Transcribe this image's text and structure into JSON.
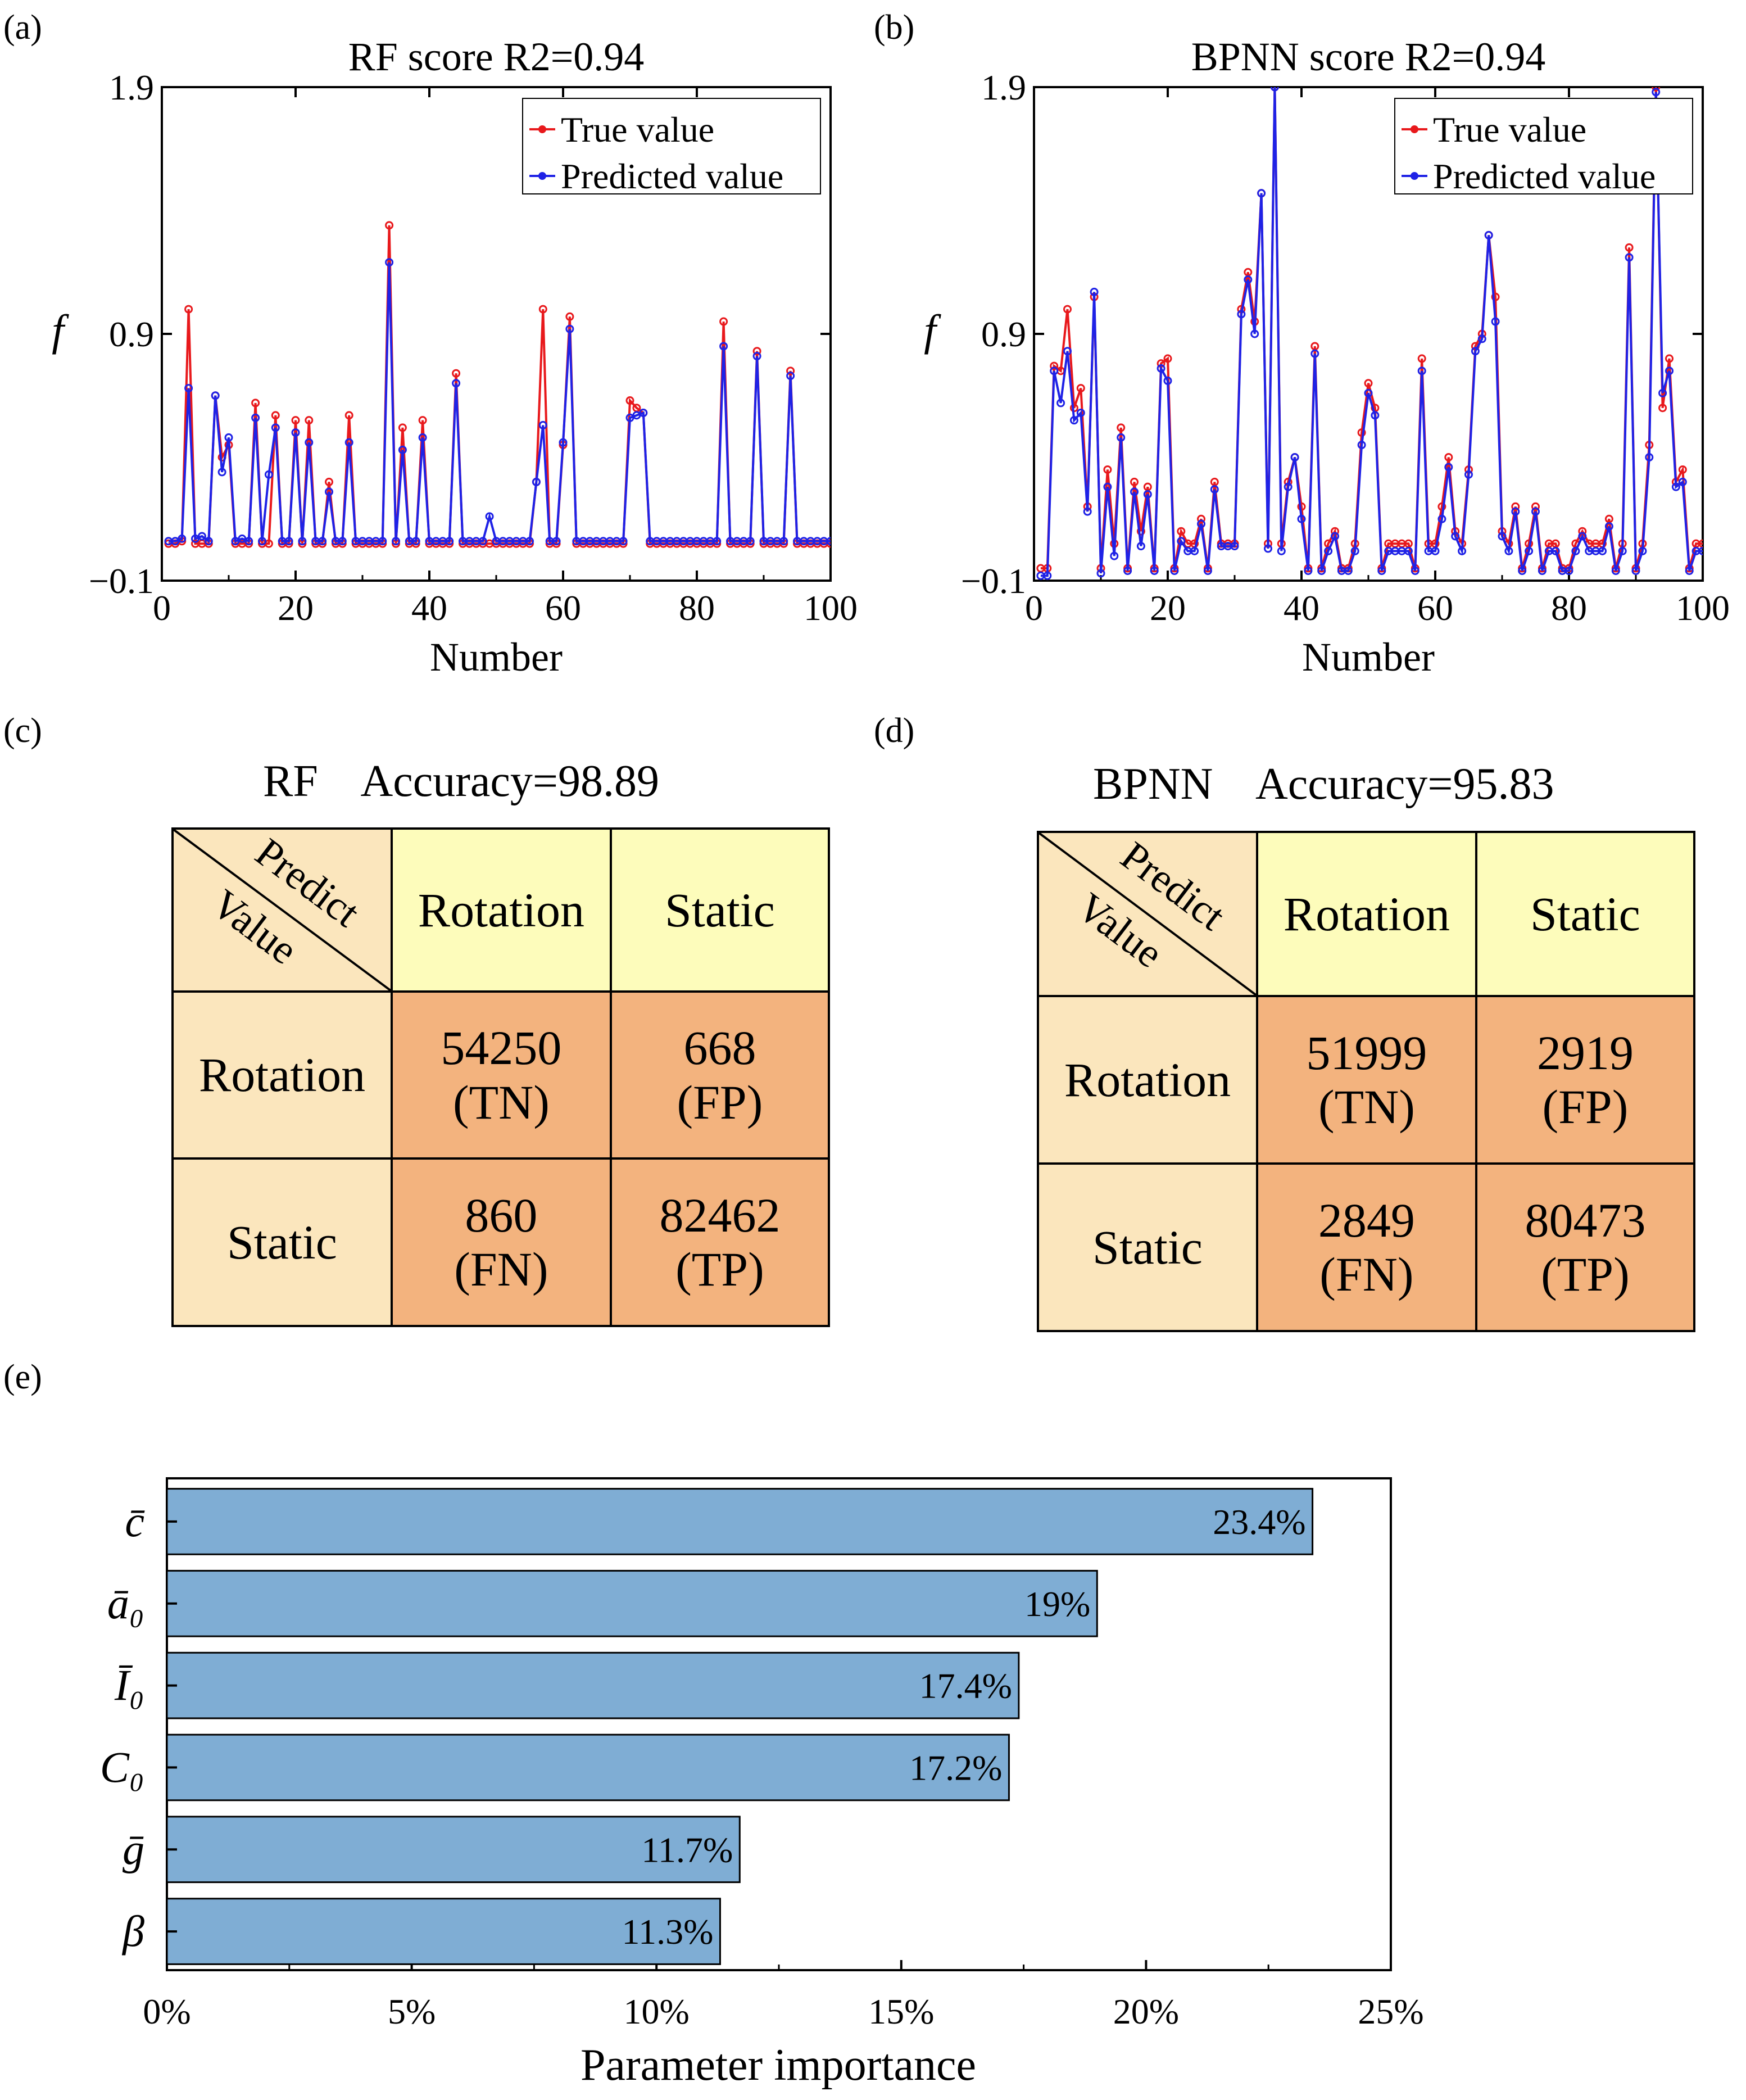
{
  "panels": {
    "a": "(a)",
    "b": "(b)",
    "c": "(c)",
    "d": "(d)",
    "e": "(e)"
  },
  "line_panels": [
    {
      "title": "RF score   R2=0.94",
      "ylabel": "f",
      "xlabel": "Number",
      "legend": [
        "True value",
        "Predicted value"
      ]
    },
    {
      "title": "BPNN score   R2=0.94",
      "ylabel": "f",
      "xlabel": "Number",
      "legend": [
        "True value",
        "Predicted value"
      ]
    }
  ],
  "tables": [
    {
      "title": "RF    Accuracy=98.89",
      "corner_top": "Predict",
      "corner_bottom": "Value",
      "col_headers": [
        "Rotation",
        "Static"
      ],
      "rows": [
        {
          "label": "Rotation",
          "cells": [
            [
              "54250",
              "(TN)"
            ],
            [
              "668",
              "(FP)"
            ]
          ]
        },
        {
          "label": "Static",
          "cells": [
            [
              "860",
              "(FN)"
            ],
            [
              "82462",
              "(TP)"
            ]
          ]
        }
      ]
    },
    {
      "title": "BPNN    Accuracy=95.83",
      "corner_top": "Predict",
      "corner_bottom": "Value",
      "col_headers": [
        "Rotation",
        "Static"
      ],
      "rows": [
        {
          "label": "Rotation",
          "cells": [
            [
              "51999",
              "(TN)"
            ],
            [
              "2919",
              "(FP)"
            ]
          ]
        },
        {
          "label": "Static",
          "cells": [
            [
              "2849",
              "(FN)"
            ],
            [
              "80473",
              "(TP)"
            ]
          ]
        }
      ]
    }
  ],
  "colors": {
    "true_series": "#e8191c",
    "pred_series": "#1f22e6",
    "bar_fill": "#7fadd4",
    "table_header_yellow": "#fdfcbb",
    "table_header_tan": "#fbe6bd",
    "table_cell_orange": "#f3b37e"
  },
  "chart_data": [
    {
      "type": "line",
      "title": "RF score   R2=0.94",
      "xlabel": "Number",
      "ylabel": "f",
      "xlim": [
        0,
        100
      ],
      "ylim": [
        -0.1,
        1.9
      ],
      "xticks": [
        0,
        20,
        40,
        60,
        80,
        100
      ],
      "yticks": [
        -0.1,
        0.9,
        1.9
      ],
      "ytick_labels": [
        "−0.1",
        "0.9",
        "1.9"
      ],
      "legend_position": "top-right",
      "grid": false,
      "x": [
        1,
        2,
        3,
        4,
        5,
        6,
        7,
        8,
        9,
        10,
        11,
        12,
        13,
        14,
        15,
        16,
        17,
        18,
        19,
        20,
        21,
        22,
        23,
        24,
        25,
        26,
        27,
        28,
        29,
        30,
        31,
        32,
        33,
        34,
        35,
        36,
        37,
        38,
        39,
        40,
        41,
        42,
        43,
        44,
        45,
        46,
        47,
        48,
        49,
        50,
        51,
        52,
        53,
        54,
        55,
        56,
        57,
        58,
        59,
        60,
        61,
        62,
        63,
        64,
        65,
        66,
        67,
        68,
        69,
        70,
        71,
        72,
        73,
        74,
        75,
        76,
        77,
        78,
        79,
        80,
        81,
        82,
        83,
        84,
        85,
        86,
        87,
        88,
        89,
        90,
        91,
        92,
        93,
        94,
        95,
        96,
        97,
        98,
        99,
        100
      ],
      "series": [
        {
          "name": "True value",
          "values": [
            0.05,
            0.05,
            0.06,
            1.0,
            0.05,
            0.05,
            0.05,
            0.65,
            0.4,
            0.45,
            0.05,
            0.05,
            0.05,
            0.62,
            0.05,
            0.05,
            0.57,
            0.05,
            0.05,
            0.55,
            0.05,
            0.55,
            0.05,
            0.05,
            0.3,
            0.05,
            0.05,
            0.57,
            0.05,
            0.05,
            0.05,
            0.05,
            0.05,
            1.34,
            0.05,
            0.52,
            0.05,
            0.05,
            0.55,
            0.05,
            0.05,
            0.05,
            0.05,
            0.74,
            0.05,
            0.05,
            0.05,
            0.05,
            0.05,
            0.05,
            0.05,
            0.05,
            0.05,
            0.05,
            0.05,
            0.3,
            1.0,
            0.05,
            0.05,
            0.45,
            0.97,
            0.05,
            0.05,
            0.05,
            0.05,
            0.05,
            0.05,
            0.05,
            0.05,
            0.63,
            0.6,
            0.58,
            0.05,
            0.05,
            0.05,
            0.05,
            0.05,
            0.05,
            0.05,
            0.05,
            0.05,
            0.05,
            0.05,
            0.95,
            0.05,
            0.05,
            0.05,
            0.05,
            0.83,
            0.05,
            0.05,
            0.05,
            0.05,
            0.75,
            0.05,
            0.05,
            0.05,
            0.05,
            0.05,
            0.05
          ]
        },
        {
          "name": "Predicted value",
          "values": [
            0.06,
            0.06,
            0.07,
            0.68,
            0.07,
            0.08,
            0.06,
            0.65,
            0.34,
            0.48,
            0.06,
            0.07,
            0.06,
            0.56,
            0.06,
            0.33,
            0.52,
            0.06,
            0.06,
            0.5,
            0.06,
            0.46,
            0.06,
            0.06,
            0.26,
            0.06,
            0.06,
            0.46,
            0.06,
            0.06,
            0.06,
            0.06,
            0.06,
            1.19,
            0.06,
            0.43,
            0.06,
            0.06,
            0.48,
            0.06,
            0.06,
            0.06,
            0.06,
            0.7,
            0.06,
            0.06,
            0.06,
            0.06,
            0.16,
            0.06,
            0.06,
            0.06,
            0.06,
            0.06,
            0.06,
            0.3,
            0.53,
            0.06,
            0.06,
            0.46,
            0.92,
            0.06,
            0.06,
            0.06,
            0.06,
            0.06,
            0.06,
            0.06,
            0.06,
            0.56,
            0.57,
            0.58,
            0.06,
            0.06,
            0.06,
            0.06,
            0.06,
            0.06,
            0.06,
            0.06,
            0.06,
            0.06,
            0.06,
            0.85,
            0.06,
            0.06,
            0.06,
            0.06,
            0.81,
            0.06,
            0.06,
            0.06,
            0.06,
            0.73,
            0.06,
            0.06,
            0.06,
            0.06,
            0.06,
            0.06
          ]
        }
      ]
    },
    {
      "type": "line",
      "title": "BPNN score   R2=0.94",
      "xlabel": "Number",
      "ylabel": "f",
      "xlim": [
        0,
        100
      ],
      "ylim": [
        -0.1,
        1.9
      ],
      "xticks": [
        0,
        20,
        40,
        60,
        80,
        100
      ],
      "yticks": [
        -0.1,
        0.9,
        1.9
      ],
      "ytick_labels": [
        "−0.1",
        "0.9",
        "1.9"
      ],
      "legend_position": "top-right",
      "grid": false,
      "x": [
        1,
        2,
        3,
        4,
        5,
        6,
        7,
        8,
        9,
        10,
        11,
        12,
        13,
        14,
        15,
        16,
        17,
        18,
        19,
        20,
        21,
        22,
        23,
        24,
        25,
        26,
        27,
        28,
        29,
        30,
        31,
        32,
        33,
        34,
        35,
        36,
        37,
        38,
        39,
        40,
        41,
        42,
        43,
        44,
        45,
        46,
        47,
        48,
        49,
        50,
        51,
        52,
        53,
        54,
        55,
        56,
        57,
        58,
        59,
        60,
        61,
        62,
        63,
        64,
        65,
        66,
        67,
        68,
        69,
        70,
        71,
        72,
        73,
        74,
        75,
        76,
        77,
        78,
        79,
        80,
        81,
        82,
        83,
        84,
        85,
        86,
        87,
        88,
        89,
        90,
        91,
        92,
        93,
        94,
        95,
        96,
        97,
        98,
        99,
        100
      ],
      "series": [
        {
          "name": "True value",
          "values": [
            -0.05,
            -0.05,
            0.77,
            0.75,
            1.0,
            0.6,
            0.68,
            0.2,
            1.05,
            -0.05,
            0.35,
            0.05,
            0.52,
            -0.05,
            0.3,
            0.1,
            0.28,
            -0.05,
            0.78,
            0.8,
            -0.05,
            0.1,
            0.05,
            0.05,
            0.15,
            -0.05,
            0.3,
            0.05,
            0.05,
            0.05,
            1.0,
            1.15,
            0.95,
            1.47,
            0.05,
            1.9,
            0.05,
            0.3,
            0.4,
            0.2,
            -0.05,
            0.85,
            -0.05,
            0.05,
            0.1,
            -0.05,
            -0.05,
            0.05,
            0.5,
            0.7,
            0.6,
            -0.05,
            0.05,
            0.05,
            0.05,
            0.05,
            -0.05,
            0.8,
            0.05,
            0.05,
            0.2,
            0.4,
            0.1,
            0.05,
            0.35,
            0.85,
            0.9,
            1.3,
            1.05,
            0.1,
            0.05,
            0.2,
            -0.05,
            0.05,
            0.2,
            -0.05,
            0.05,
            0.05,
            -0.05,
            -0.05,
            0.05,
            0.1,
            0.05,
            0.05,
            0.05,
            0.15,
            -0.05,
            0.05,
            1.25,
            -0.05,
            0.05,
            0.45,
            1.9,
            0.6,
            0.8,
            0.3,
            0.35,
            -0.05,
            0.05,
            0.05
          ]
        },
        {
          "name": "Predicted value",
          "values": [
            -0.08,
            -0.08,
            0.75,
            0.62,
            0.83,
            0.55,
            0.58,
            0.18,
            1.07,
            -0.07,
            0.28,
            0.0,
            0.48,
            -0.06,
            0.26,
            0.04,
            0.25,
            -0.06,
            0.76,
            0.71,
            -0.06,
            0.06,
            0.02,
            0.02,
            0.13,
            -0.06,
            0.27,
            0.04,
            0.04,
            0.04,
            0.98,
            1.12,
            0.9,
            1.47,
            0.03,
            1.9,
            0.02,
            0.28,
            0.4,
            0.15,
            -0.06,
            0.82,
            -0.06,
            0.02,
            0.08,
            -0.06,
            -0.06,
            0.02,
            0.45,
            0.66,
            0.57,
            -0.06,
            0.02,
            0.02,
            0.02,
            0.02,
            -0.06,
            0.75,
            0.02,
            0.02,
            0.15,
            0.36,
            0.08,
            0.02,
            0.33,
            0.83,
            0.88,
            1.3,
            0.95,
            0.08,
            0.02,
            0.18,
            -0.06,
            0.02,
            0.18,
            -0.06,
            0.02,
            0.02,
            -0.06,
            -0.06,
            0.02,
            0.08,
            0.02,
            0.02,
            0.02,
            0.12,
            -0.06,
            0.02,
            1.21,
            -0.06,
            0.02,
            0.4,
            1.88,
            0.66,
            0.75,
            0.28,
            0.3,
            -0.06,
            0.02,
            0.02
          ]
        }
      ]
    },
    {
      "type": "bar",
      "orientation": "horizontal",
      "xlabel": "Parameter importance",
      "xlim": [
        0,
        25
      ],
      "xticks": [
        0,
        5,
        10,
        15,
        20,
        25
      ],
      "xtick_labels": [
        "0%",
        "5%",
        "10%",
        "15%",
        "20%",
        "25%"
      ],
      "categories": [
        "c̄",
        "ā₀",
        "Ī₀",
        "C₀",
        "ḡ",
        "β"
      ],
      "values": [
        23.4,
        19.0,
        17.4,
        17.2,
        11.7,
        11.3
      ],
      "data_labels": [
        "23.4%",
        "19%",
        "17.4%",
        "17.2%",
        "11.7%",
        "11.3%"
      ]
    }
  ]
}
